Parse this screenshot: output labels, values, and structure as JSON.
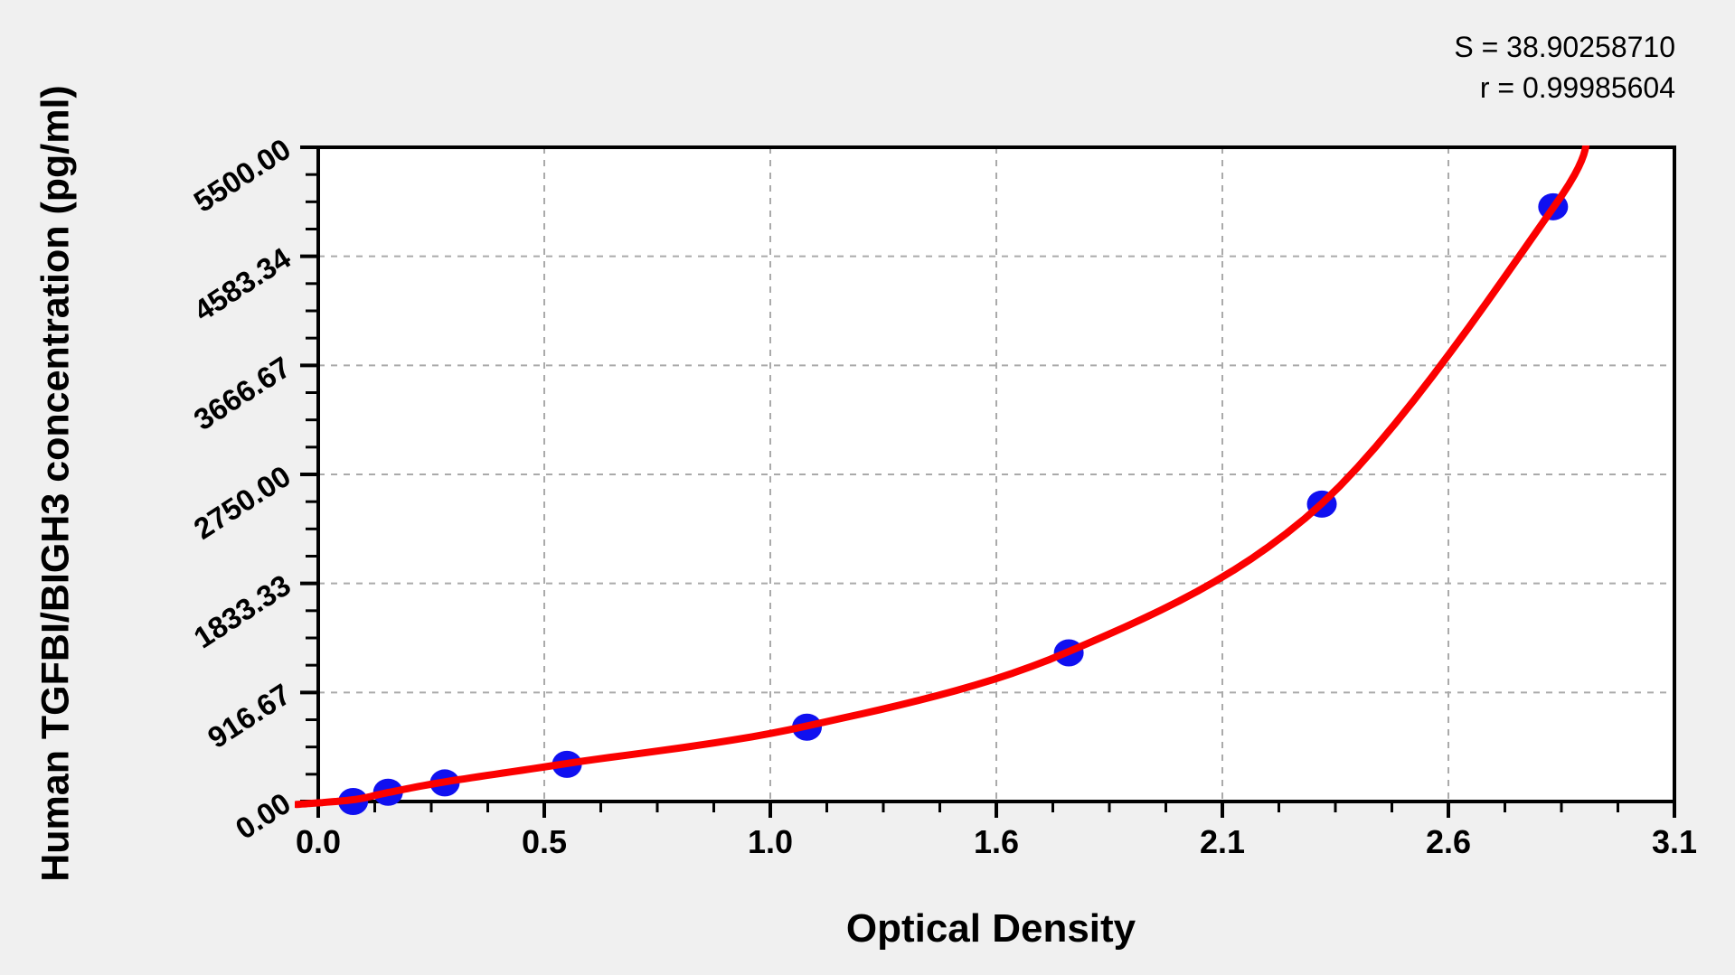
{
  "stats": {
    "s_label": "S = 38.90258710",
    "r_label": "r = 0.99985604"
  },
  "chart_data": {
    "type": "scatter",
    "title": "",
    "xlabel": "Optical Density",
    "ylabel": "Human TGFBI/BIGH3 concentration (pg/ml)",
    "x_tick_labels": [
      "0.0",
      "0.5",
      "1.0",
      "1.6",
      "2.1",
      "2.6",
      "3.1"
    ],
    "y_tick_labels": [
      "0.00",
      "916.67",
      "1833.33",
      "2750.00",
      "3666.67",
      "4583.34",
      "5500.00"
    ],
    "x_range": [
      0,
      3.108
    ],
    "y_range": [
      0,
      5500
    ],
    "grid": "dashed, at major ticks",
    "legend": "none",
    "fit": {
      "S": 38.9025871,
      "r": 0.99985604
    },
    "points": [
      {
        "od": 0.08,
        "conc": 0
      },
      {
        "od": 0.16,
        "conc": 78.13
      },
      {
        "od": 0.29,
        "conc": 156.25
      },
      {
        "od": 0.57,
        "conc": 312.5
      },
      {
        "od": 1.12,
        "conc": 625
      },
      {
        "od": 1.72,
        "conc": 1250
      },
      {
        "od": 2.3,
        "conc": 2500
      },
      {
        "od": 2.83,
        "conc": 5000
      }
    ],
    "curve_anchors": [
      {
        "od": -0.05,
        "conc": -25
      },
      {
        "od": 0.08,
        "conc": 15
      },
      {
        "od": 0.16,
        "conc": 75
      },
      {
        "od": 0.29,
        "conc": 165
      },
      {
        "od": 0.57,
        "conc": 320
      },
      {
        "od": 1.12,
        "conc": 635
      },
      {
        "od": 1.72,
        "conc": 1260
      },
      {
        "od": 2.3,
        "conc": 2505
      },
      {
        "od": 2.83,
        "conc": 4990
      },
      {
        "od": 2.91,
        "conc": 5650
      }
    ],
    "colors": {
      "curve": "#fb0000",
      "points": "#1010f0",
      "grid": "#aaaaaa",
      "frame": "#000000",
      "plot_bg": "#ffffff",
      "page_bg": "#f0f0f0",
      "text": "#000000"
    }
  }
}
